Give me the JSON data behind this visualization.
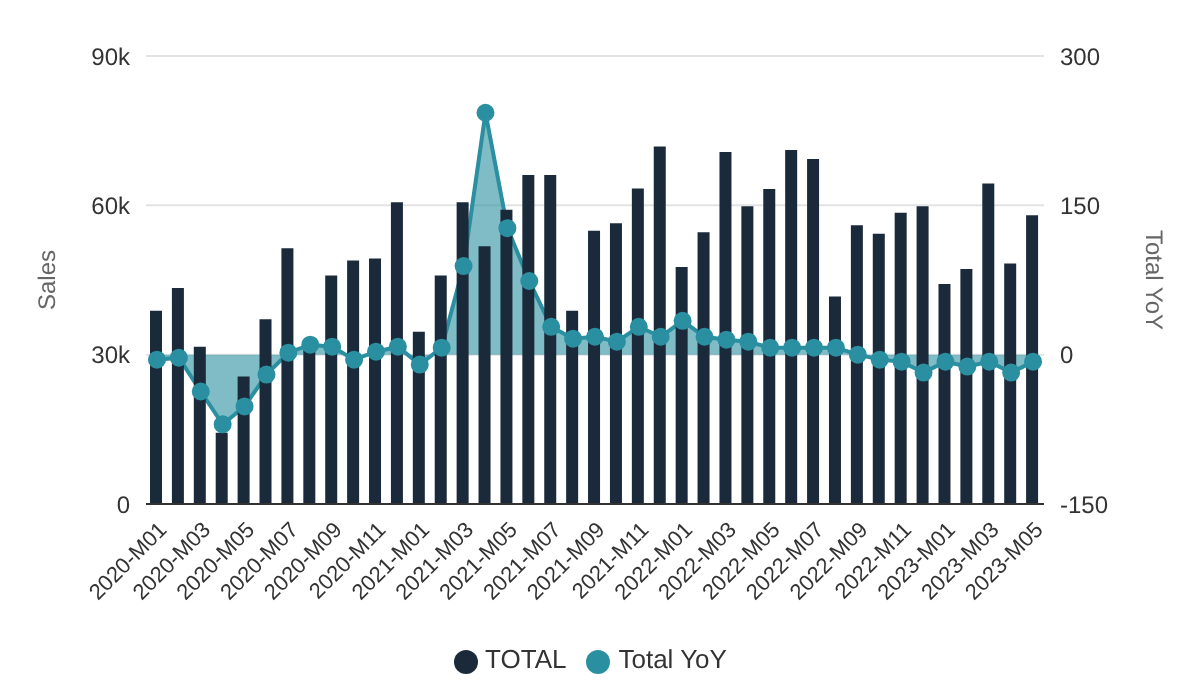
{
  "chart_data": {
    "type": "bar",
    "categories": [
      "2020-M01",
      null,
      "2020-M03",
      null,
      "2020-M05",
      null,
      "2020-M07",
      null,
      "2020-M09",
      null,
      "2020-M11",
      null,
      "2021-M01",
      null,
      "2021-M03",
      null,
      "2021-M05",
      null,
      "2021-M07",
      null,
      "2021-M09",
      null,
      "2021-M11",
      null,
      "2022-M01",
      null,
      "2022-M03",
      null,
      "2022-M05",
      null,
      "2022-M07",
      null,
      "2022-M09",
      null,
      "2022-M11",
      null,
      "2023-M01",
      null,
      "2023-M03",
      null,
      "2023-M05"
    ],
    "series": [
      {
        "name": "TOTAL",
        "color": "#1b2a3a",
        "values": [
          38800,
          43400,
          31600,
          14300,
          25600,
          37100,
          51400,
          31000,
          45900,
          48900,
          49300,
          60600,
          34600,
          45900,
          60600,
          51800,
          59100,
          66100,
          66100,
          38800,
          54900,
          56400,
          63400,
          71800,
          47600,
          54600,
          70700,
          59800,
          63300,
          71100,
          69300,
          41700,
          56000,
          54300,
          58500,
          59800,
          44200,
          47200,
          64400,
          48300,
          58000
        ]
      },
      {
        "name": "Total YoY",
        "type": "area",
        "axis": "y2",
        "color": "#2a8fa0",
        "values": [
          -5,
          -3,
          -37,
          -70,
          -52,
          -20,
          2,
          10,
          8,
          -5,
          3,
          8,
          -10,
          7,
          89,
          243,
          127,
          74,
          28,
          16,
          18,
          13,
          28,
          18,
          34,
          18,
          15,
          13,
          7,
          7,
          7,
          7,
          0,
          -5,
          -7,
          -18,
          -7,
          -12,
          -7,
          -18,
          -7
        ]
      }
    ],
    "ylabel": "Sales",
    "y2label": "Total YoY",
    "ylim": [
      0,
      90000
    ],
    "yticks": [
      0,
      {
        "value": 30000,
        "label": "30k"
      },
      {
        "value": 60000,
        "label": "60k"
      },
      {
        "value": 90000,
        "label": "90k"
      }
    ],
    "y2lim": [
      -150,
      300
    ],
    "y2ticks": [
      -150,
      0,
      150,
      300
    ],
    "grid": "y",
    "legend": "bottom",
    "marker": "circle"
  }
}
